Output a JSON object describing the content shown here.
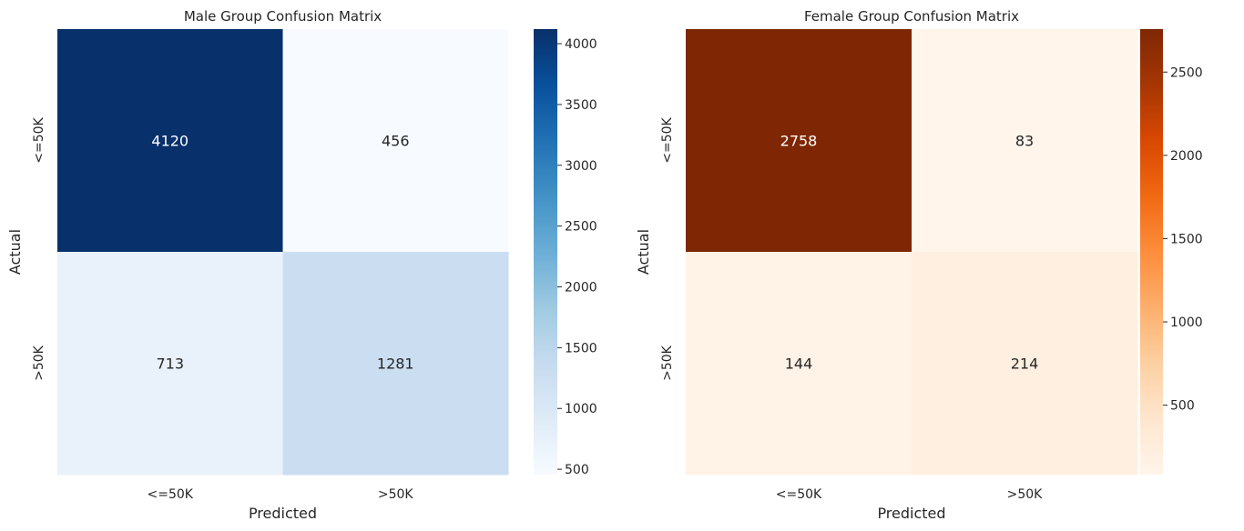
{
  "chart_data": [
    {
      "type": "heatmap",
      "title": "Male Group Confusion Matrix",
      "xlabel": "Predicted",
      "ylabel": "Actual",
      "x_categories": [
        "<=50K",
        ">50K"
      ],
      "y_categories": [
        "<=50K",
        ">50K"
      ],
      "values": [
        [
          4120,
          456
        ],
        [
          713,
          1281
        ]
      ],
      "colormap": "Blues",
      "colorbar_range": [
        456,
        4120
      ],
      "colorbar_ticks": [
        500,
        1000,
        1500,
        2000,
        2500,
        3000,
        3500,
        4000
      ],
      "colors": {
        "low": "#f7fbff",
        "high": "#08306b"
      },
      "grid": false
    },
    {
      "type": "heatmap",
      "title": "Female Group Confusion Matrix",
      "xlabel": "Predicted",
      "ylabel": "Actual",
      "x_categories": [
        "<=50K",
        ">50K"
      ],
      "y_categories": [
        "<=50K",
        ">50K"
      ],
      "values": [
        [
          2758,
          83
        ],
        [
          144,
          214
        ]
      ],
      "colormap": "Oranges",
      "colorbar_range": [
        83,
        2758
      ],
      "colorbar_ticks": [
        500,
        1000,
        1500,
        2000,
        2500
      ],
      "colors": {
        "low": "#fff5eb",
        "high": "#7f2704"
      },
      "grid": false
    }
  ]
}
